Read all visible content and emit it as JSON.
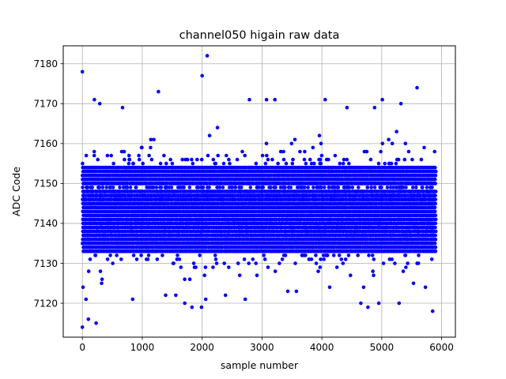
{
  "chart_data": {
    "type": "scatter",
    "title": "channel050 higain raw data",
    "xlabel": "sample number",
    "ylabel": "ADC Code",
    "xlim": [
      -320,
      6230
    ],
    "ylim": [
      7111.5,
      7184.5
    ],
    "x_ticks": [
      0,
      1000,
      2000,
      3000,
      4000,
      5000,
      6000
    ],
    "y_ticks": [
      7120,
      7130,
      7140,
      7150,
      7160,
      7170,
      7180
    ],
    "grid": true,
    "marker_color": "#0000ff",
    "sample_count": 5900,
    "outliers": [
      {
        "x": 0,
        "y": 7178
      },
      {
        "x": 2085,
        "y": 7182
      },
      {
        "x": 2000,
        "y": 7177
      },
      {
        "x": 1270,
        "y": 7173
      },
      {
        "x": 200,
        "y": 7171
      },
      {
        "x": 290,
        "y": 7170
      },
      {
        "x": 670,
        "y": 7169
      },
      {
        "x": 2790,
        "y": 7171
      },
      {
        "x": 3075,
        "y": 7171
      },
      {
        "x": 3215,
        "y": 7171
      },
      {
        "x": 4055,
        "y": 7171
      },
      {
        "x": 5010,
        "y": 7171
      },
      {
        "x": 5320,
        "y": 7170
      },
      {
        "x": 4420,
        "y": 7169
      },
      {
        "x": 4880,
        "y": 7169
      },
      {
        "x": 5590,
        "y": 7174
      },
      {
        "x": 0,
        "y": 7114
      },
      {
        "x": 230,
        "y": 7115
      },
      {
        "x": 100,
        "y": 7116
      },
      {
        "x": 1990,
        "y": 7119
      },
      {
        "x": 1830,
        "y": 7119
      },
      {
        "x": 2720,
        "y": 7121
      },
      {
        "x": 4770,
        "y": 7119
      },
      {
        "x": 4950,
        "y": 7120
      },
      {
        "x": 5290,
        "y": 7120
      },
      {
        "x": 5850,
        "y": 7118
      },
      {
        "x": 4650,
        "y": 7120
      },
      {
        "x": 840,
        "y": 7121
      },
      {
        "x": 10,
        "y": 7124
      },
      {
        "x": 320,
        "y": 7125
      },
      {
        "x": 1390,
        "y": 7122
      },
      {
        "x": 2060,
        "y": 7121
      },
      {
        "x": 1710,
        "y": 7120
      },
      {
        "x": 3430,
        "y": 7123
      },
      {
        "x": 3575,
        "y": 7123
      },
      {
        "x": 4130,
        "y": 7124
      },
      {
        "x": 5730,
        "y": 7124
      },
      {
        "x": 5530,
        "y": 7125
      },
      {
        "x": 60,
        "y": 7121
      },
      {
        "x": 1560,
        "y": 7122
      },
      {
        "x": 2390,
        "y": 7122
      }
    ],
    "dense_bands": [
      {
        "y": 7154
      },
      {
        "y": 7153
      },
      {
        "y": 7152
      },
      {
        "y": 7151
      },
      {
        "y": 7150
      },
      {
        "y": 7148
      },
      {
        "y": 7147
      },
      {
        "y": 7146
      },
      {
        "y": 7145
      },
      {
        "y": 7144
      },
      {
        "y": 7143
      },
      {
        "y": 7142
      },
      {
        "y": 7141
      },
      {
        "y": 7140
      },
      {
        "y": 7139
      },
      {
        "y": 7138
      },
      {
        "y": 7137
      },
      {
        "y": 7136
      },
      {
        "y": 7135
      },
      {
        "y": 7134
      },
      {
        "y": 7133
      }
    ]
  }
}
